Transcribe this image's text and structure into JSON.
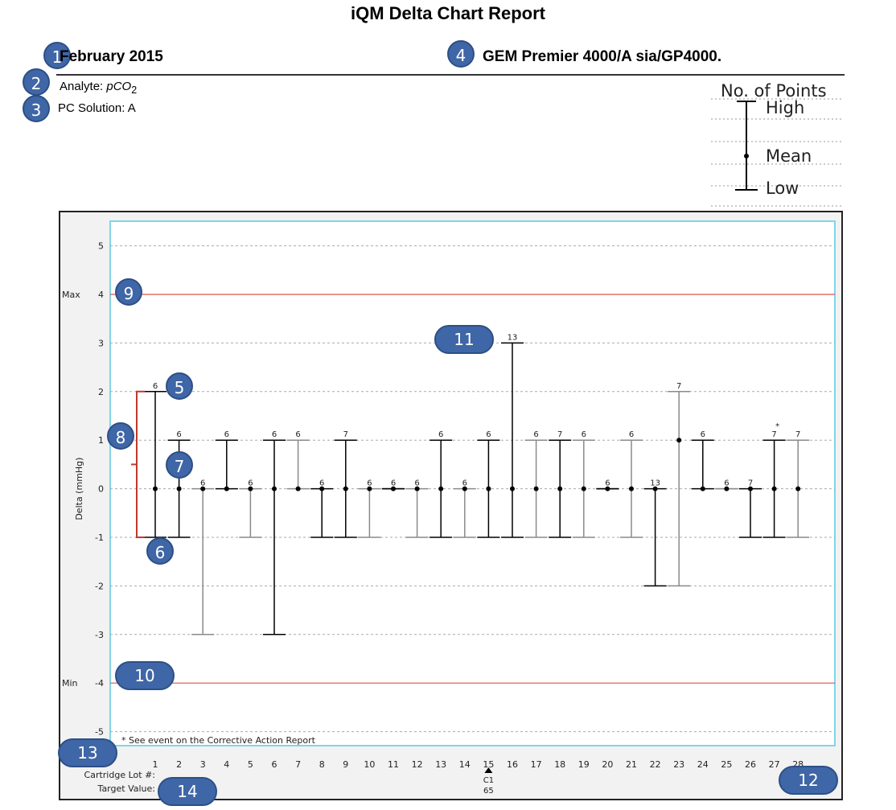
{
  "report": {
    "title": "iQM Delta Chart Report",
    "month": "February 2015",
    "instrument": "GEM Premier 4000/A sia/GP4000.",
    "analyte_label": "Analyte: ",
    "analyte_value": "pCO",
    "analyte_sub": "2",
    "pc_solution": "PC Solution: A"
  },
  "legend": {
    "title": "No. of Points",
    "high": "High",
    "mean": "Mean",
    "low": "Low"
  },
  "badges": [
    "1",
    "2",
    "3",
    "4",
    "5",
    "6",
    "7",
    "8",
    "9",
    "10",
    "11",
    "12",
    "13",
    "14"
  ],
  "footer": {
    "note": "* See event on the Corrective Action Report",
    "cartridge_label": "Cartridge Lot #:",
    "target_label": "Target Value:",
    "event_marker": "C1",
    "event_value": "65"
  },
  "colors": {
    "badge": "#3f66a6",
    "limit_line": "#d9534f",
    "bracket": "#c0392b",
    "plot_border": "#7fd6e6",
    "bar_dark": "#000000",
    "bar_gray": "#8a8a8a"
  },
  "chart_data": {
    "type": "error_bar",
    "ylabel": "Delta (mmHg)",
    "ylim": [
      -5,
      5
    ],
    "yticks": [
      {
        "v": 5,
        "label": "5"
      },
      {
        "v": 4,
        "label": "4",
        "name": "Max"
      },
      {
        "v": 3,
        "label": "3"
      },
      {
        "v": 2,
        "label": "2"
      },
      {
        "v": 1,
        "label": "1"
      },
      {
        "v": 0,
        "label": "0"
      },
      {
        "v": -1,
        "label": "-1"
      },
      {
        "v": -2,
        "label": "-2"
      },
      {
        "v": -3,
        "label": "-3"
      },
      {
        "v": -4,
        "label": "-4",
        "name": "Min"
      },
      {
        "v": -5,
        "label": "-5"
      }
    ],
    "max_limit": 4,
    "min_limit": -4,
    "x": [
      "1",
      "2",
      "3",
      "4",
      "5",
      "6",
      "7",
      "8",
      "9",
      "10",
      "11",
      "12",
      "13",
      "14",
      "15",
      "16",
      "17",
      "18",
      "19",
      "20",
      "21",
      "22",
      "23",
      "24",
      "25",
      "26",
      "27",
      "28"
    ],
    "points": [
      {
        "day": 1,
        "high": 2,
        "mean": 0,
        "low": -1,
        "n": "6",
        "shade": "dark"
      },
      {
        "day": 2,
        "high": 1,
        "mean": 0,
        "low": -1,
        "n": "6",
        "shade": "dark"
      },
      {
        "day": 3,
        "high": 0,
        "mean": 0,
        "low": -3,
        "n": "6",
        "shade": "gray"
      },
      {
        "day": 4,
        "high": 1,
        "mean": 0,
        "low": 0,
        "n": "6",
        "shade": "dark"
      },
      {
        "day": 5,
        "high": 0,
        "mean": 0,
        "low": -1,
        "n": "6",
        "shade": "gray"
      },
      {
        "day": 6,
        "high": 1,
        "mean": 0,
        "low": -3,
        "n": "6",
        "shade": "dark"
      },
      {
        "day": 7,
        "high": 1,
        "mean": 0,
        "low": 0,
        "n": "6",
        "shade": "gray"
      },
      {
        "day": 8,
        "high": 0,
        "mean": 0,
        "low": -1,
        "n": "6",
        "shade": "dark"
      },
      {
        "day": 9,
        "high": 1,
        "mean": 0,
        "low": -1,
        "n": "7",
        "shade": "dark"
      },
      {
        "day": 10,
        "high": 0,
        "mean": 0,
        "low": -1,
        "n": "6",
        "shade": "gray"
      },
      {
        "day": 11,
        "high": 0,
        "mean": 0,
        "low": 0,
        "n": "6",
        "shade": "dark"
      },
      {
        "day": 12,
        "high": 0,
        "mean": 0,
        "low": -1,
        "n": "6",
        "shade": "gray"
      },
      {
        "day": 13,
        "high": 1,
        "mean": 0,
        "low": -1,
        "n": "6",
        "shade": "dark"
      },
      {
        "day": 14,
        "high": 0,
        "mean": 0,
        "low": -1,
        "n": "6",
        "shade": "gray"
      },
      {
        "day": 15,
        "high": 1,
        "mean": 0,
        "low": -1,
        "n": "6",
        "shade": "dark"
      },
      {
        "day": 16,
        "high": 3,
        "mean": 0,
        "low": -1,
        "n": "13",
        "shade": "dark"
      },
      {
        "day": 17,
        "high": 1,
        "mean": 0,
        "low": -1,
        "n": "6",
        "shade": "gray"
      },
      {
        "day": 18,
        "high": 1,
        "mean": 0,
        "low": -1,
        "n": "7",
        "shade": "dark"
      },
      {
        "day": 19,
        "high": 1,
        "mean": 0,
        "low": -1,
        "n": "6",
        "shade": "gray"
      },
      {
        "day": 20,
        "high": 0,
        "mean": 0,
        "low": 0,
        "n": "6",
        "shade": "dark"
      },
      {
        "day": 21,
        "high": 1,
        "mean": 0,
        "low": -1,
        "n": "6",
        "shade": "gray"
      },
      {
        "day": 22,
        "high": 0,
        "mean": 0,
        "low": -2,
        "n": "13",
        "shade": "dark"
      },
      {
        "day": 23,
        "high": 2,
        "mean": 1,
        "low": -2,
        "n": "7",
        "shade": "gray"
      },
      {
        "day": 24,
        "high": 1,
        "mean": 0,
        "low": 0,
        "n": "6",
        "shade": "dark"
      },
      {
        "day": 25,
        "high": 0,
        "mean": 0,
        "low": 0,
        "n": "6",
        "shade": "gray"
      },
      {
        "day": 26,
        "high": 0,
        "mean": 0,
        "low": -1,
        "n": "7",
        "shade": "dark"
      },
      {
        "day": 27,
        "high": 1,
        "mean": 0,
        "low": -1,
        "n": "7",
        "shade": "dark",
        "flag": "*"
      },
      {
        "day": 28,
        "high": 1,
        "mean": 0,
        "low": -1,
        "n": "7",
        "shade": "gray"
      }
    ]
  }
}
